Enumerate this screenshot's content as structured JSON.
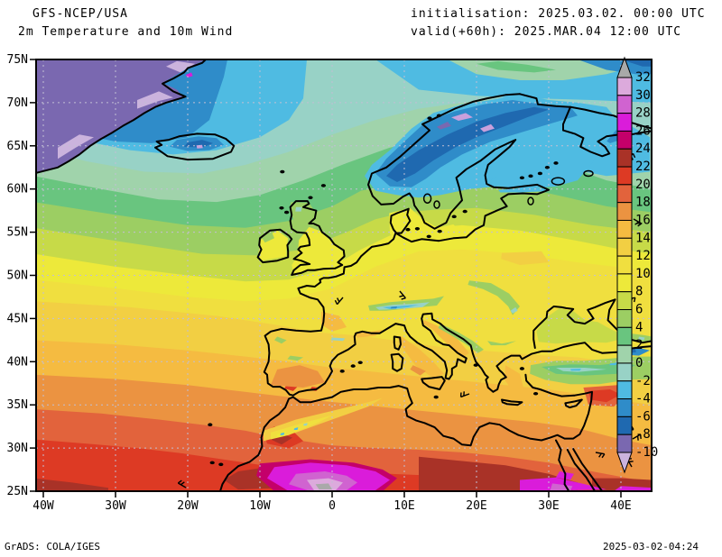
{
  "header": {
    "model": "GFS-NCEP/USA",
    "product": "2m Temperature and 10m Wind",
    "init_line": "initialisation: 2025.03.02. 00:00 UTC",
    "valid_line": "valid(+60h): 2025.MAR.04 12:00 UTC"
  },
  "footer": {
    "left": "GrADS: COLA/IGES",
    "right": "2025-03-02-04:24"
  },
  "axes": {
    "lat_values": [
      75,
      70,
      65,
      60,
      55,
      50,
      45,
      40,
      35,
      30,
      25
    ],
    "lat_labels": [
      "75N",
      "70N",
      "65N",
      "60N",
      "55N",
      "50N",
      "45N",
      "40N",
      "35N",
      "30N",
      "25N"
    ],
    "lon_values": [
      -40,
      -30,
      -20,
      -10,
      0,
      10,
      20,
      30,
      40
    ],
    "lon_labels": [
      "40W",
      "30W",
      "20W",
      "10W",
      "0",
      "10E",
      "20E",
      "30E",
      "40E"
    ],
    "lat_gridlines": [
      70,
      65,
      60,
      55,
      50,
      45,
      40,
      35,
      30
    ],
    "lon_gridlines": [
      -40,
      -30,
      -20,
      -10,
      0,
      10,
      20,
      30,
      40
    ]
  },
  "colorbar": {
    "levels": [
      32,
      30,
      28,
      26,
      24,
      22,
      20,
      18,
      16,
      14,
      12,
      10,
      8,
      6,
      4,
      2,
      0,
      -2,
      -4,
      -6,
      -8,
      -10
    ],
    "segment_colors_top_to_bottom": [
      "#dcaadc",
      "#d063d0",
      "#da1cda",
      "#c4006a",
      "#a93227",
      "#dd3a24",
      "#e2633c",
      "#eb9341",
      "#f5bb41",
      "#f2cf43",
      "#f0df3f",
      "#ede93a",
      "#c7da48",
      "#9cce63",
      "#69c57f",
      "#a0d3ab",
      "#98d2c6",
      "#4fbbe2",
      "#2f8cc9",
      "#1f69b0",
      "#7a68b0"
    ],
    "above_range_color": "#a9a9a9",
    "below_range_color": "#cbb3dd",
    "units_implied_celsius": true
  },
  "map_summary": {
    "type": "filled-contour temperature map with coastlines and sparse wind barbs",
    "extent": {
      "lon_min": "40W",
      "lon_max": "40E",
      "lat_min": "25N",
      "lat_max": "75N"
    },
    "field": "2m temperature (deg C), shaded every 2 degrees from -10 to 32",
    "notable_features": [
      {
        "region": "Greenland (upper left)",
        "approx_temp_c": "-8 to below -10"
      },
      {
        "region": "Iceland interior",
        "approx_temp_c": "-6 to -10"
      },
      {
        "region": "Scandinavian mountains / Lapland",
        "approx_temp_c": "-6 to below -10"
      },
      {
        "region": "Barents Sea (top right)",
        "approx_temp_c": "-2 to -8"
      },
      {
        "region": "North Atlantic mid-latitudes",
        "approx_temp_c": "4 to 12"
      },
      {
        "region": "British Isles",
        "approx_temp_c": "6 to 10"
      },
      {
        "region": "Central Europe",
        "approx_temp_c": "10 to 12"
      },
      {
        "region": "Alps",
        "approx_temp_c": "-2 to 4"
      },
      {
        "region": "Iberia interior",
        "approx_temp_c": "16 to 22"
      },
      {
        "region": "Mediterranean Sea",
        "approx_temp_c": "14 to 18"
      },
      {
        "region": "Anatolia (Turkey)",
        "approx_temp_c": "-2 to 6"
      },
      {
        "region": "North Africa coast",
        "approx_temp_c": "18 to 24"
      },
      {
        "region": "Central Sahara hot core",
        "approx_temp_c": "26 to above 32"
      }
    ]
  }
}
